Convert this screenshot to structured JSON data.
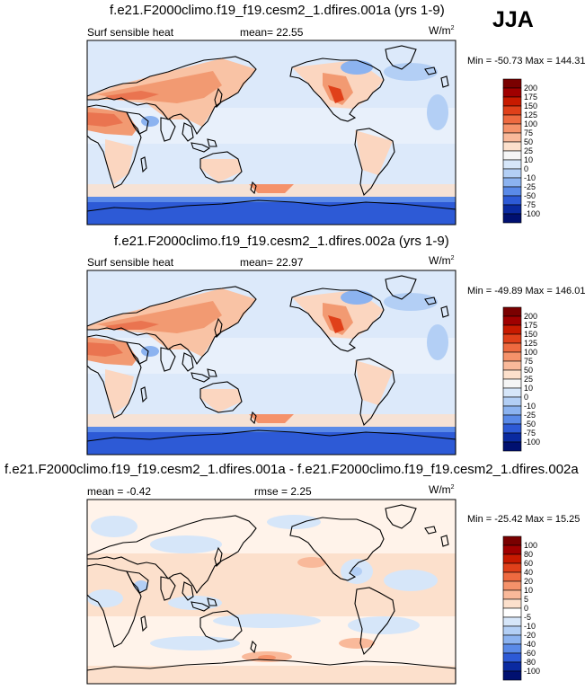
{
  "season": "JJA",
  "units": "W/m",
  "units_sup": "2",
  "panels": [
    {
      "title": "f.e21.F2000climo.f19_f19.cesm2_1.dfires.001a (yrs 1-9)",
      "variable": "Surf sensible heat",
      "stat_text": "mean=  22.55",
      "minmax": "Min = -50.73 Max = 144.31",
      "colorbar_labels": [
        "200",
        "175",
        "150",
        "125",
        "100",
        "75",
        "50",
        "25",
        "10",
        "0",
        "-10",
        "-25",
        "-50",
        "-75",
        "-100"
      ]
    },
    {
      "title": "f.e21.F2000climo.f19_f19.cesm2_1.dfires.002a (yrs 1-9)",
      "variable": "Surf sensible heat",
      "stat_text": "mean=  22.97",
      "minmax": "Min = -49.89 Max = 146.01",
      "colorbar_labels": [
        "200",
        "175",
        "150",
        "125",
        "100",
        "75",
        "50",
        "25",
        "10",
        "0",
        "-10",
        "-25",
        "-50",
        "-75",
        "-100"
      ]
    },
    {
      "title": "f.e21.F2000climo.f19_f19.cesm2_1.dfires.001a - f.e21.F2000climo.f19_f19.cesm2_1.dfires.002a",
      "mean_text": "mean =  -0.42",
      "rmse_text": "rmse =   2.25",
      "minmax": "Min = -25.42 Max = 15.25",
      "colorbar_labels": [
        "100",
        "80",
        "60",
        "40",
        "20",
        "10",
        "5",
        "0",
        "-5",
        "-10",
        "-20",
        "-40",
        "-60",
        "-80",
        "-100"
      ]
    }
  ],
  "colors": {
    "abs_scale": [
      "#7a0000",
      "#a00000",
      "#c81a00",
      "#e0401a",
      "#ee6a40",
      "#f5926a",
      "#f9b99a",
      "#fce0cc",
      "#f5f5f5",
      "#d6e6f9",
      "#b3cff5",
      "#8cb3f0",
      "#5a8ae8",
      "#2d5ad6",
      "#0a2aa0",
      "#001070"
    ],
    "diff_scale": [
      "#7a0000",
      "#a00000",
      "#c81a00",
      "#e0401a",
      "#ee6a40",
      "#f5926a",
      "#f9b99a",
      "#fce0cc",
      "#ffffff",
      "#d6e6f9",
      "#b3cff5",
      "#8cb3f0",
      "#5a8ae8",
      "#2d5ad6",
      "#0a2aa0",
      "#001070"
    ]
  }
}
